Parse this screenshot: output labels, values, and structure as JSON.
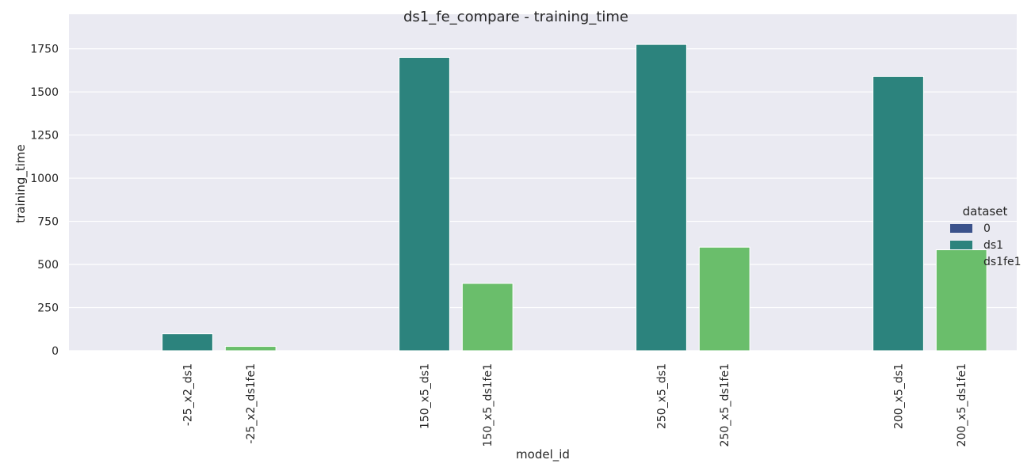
{
  "chart_data": {
    "type": "bar",
    "title": "ds1_fe_compare - training_time",
    "xlabel": "model_id",
    "ylabel": "training_time",
    "ylim": [
      0,
      1950
    ],
    "yticks": [
      0,
      250,
      500,
      750,
      1000,
      1250,
      1500,
      1750
    ],
    "grid": true,
    "legend_placement": "right",
    "legend_title": "dataset",
    "categories": [
      "-25_x2_ds1",
      "-25_x2_ds1fe1",
      "150_x5_ds1",
      "150_x5_ds1fe1",
      "250_x5_ds1",
      "250_x5_ds1fe1",
      "200_x5_ds1",
      "200_x5_ds1fe1"
    ],
    "series": [
      {
        "name": "0",
        "color": "#3b528b",
        "values": [
          null,
          null,
          null,
          null,
          null,
          null,
          null,
          null
        ]
      },
      {
        "name": "ds1",
        "color": "#2c837d",
        "values": [
          98,
          null,
          1700,
          null,
          1775,
          null,
          1590,
          null
        ]
      },
      {
        "name": "ds1fe1",
        "color": "#6abe6b",
        "values": [
          null,
          25,
          null,
          390,
          null,
          600,
          null,
          585
        ]
      }
    ]
  }
}
